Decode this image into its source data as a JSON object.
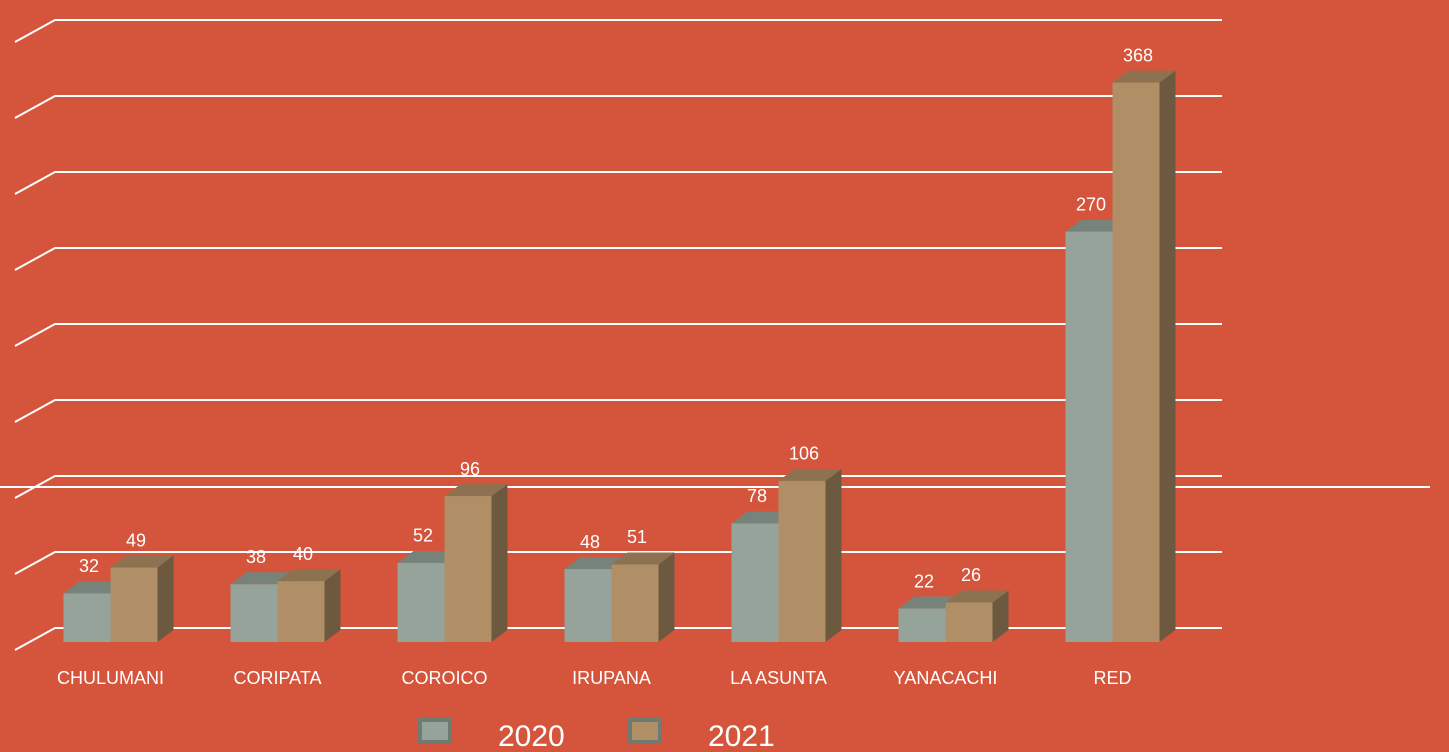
{
  "chart_data": {
    "type": "bar3d",
    "categories": [
      "CHULUMANI",
      "CORIPATA",
      "COROICO",
      "IRUPANA",
      "LA ASUNTA",
      "YANACACHI",
      "RED"
    ],
    "series": [
      {
        "name": "2020",
        "color": "#95a39a",
        "values": [
          32,
          38,
          52,
          48,
          78,
          22,
          270
        ]
      },
      {
        "name": "2021",
        "color": "#b08f66",
        "values": [
          49,
          40,
          96,
          51,
          106,
          26,
          368
        ]
      }
    ],
    "ylim": [
      0,
      400
    ],
    "yticks": [
      0,
      50,
      100,
      150,
      200,
      250,
      300,
      350,
      400
    ],
    "grid": true
  }
}
